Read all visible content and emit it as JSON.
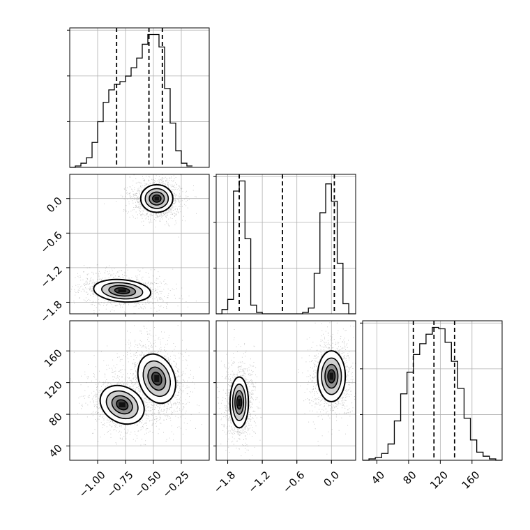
{
  "chart_data": {
    "type": "corner",
    "description_free": true,
    "grid": true,
    "parameters": [
      {
        "index": 0,
        "range": [
          -1.25,
          -0.0
        ],
        "ticks": [
          -1.0,
          -0.75,
          -0.5,
          -0.25
        ],
        "tick_labels": [
          "−1.00",
          "−0.75",
          "−0.50",
          "−0.25"
        ]
      },
      {
        "index": 1,
        "range": [
          -2.0,
          0.42
        ],
        "ticks": [
          -1.8,
          -1.2,
          -0.6,
          0.0
        ],
        "tick_labels": [
          "−1.8",
          "−1.2",
          "−0.6",
          "0.0"
        ]
      },
      {
        "index": 2,
        "range": [
          22,
          198
        ],
        "ticks": [
          40,
          80,
          120,
          160
        ],
        "tick_labels": [
          "40",
          "80",
          "120",
          "160"
        ]
      }
    ],
    "histograms": [
      {
        "param": 0,
        "bin_edges": [
          -1.25,
          -1.2,
          -1.15,
          -1.1,
          -1.05,
          -1.0,
          -0.95,
          -0.9,
          -0.85,
          -0.8,
          -0.75,
          -0.7,
          -0.65,
          -0.6,
          -0.55,
          -0.5,
          -0.45,
          -0.4,
          -0.35,
          -0.3,
          -0.25,
          -0.2,
          -0.15
        ],
        "counts": [
          0.0,
          0.01,
          0.03,
          0.07,
          0.18,
          0.33,
          0.47,
          0.56,
          0.6,
          0.62,
          0.66,
          0.72,
          0.79,
          0.89,
          0.96,
          0.96,
          0.87,
          0.57,
          0.32,
          0.12,
          0.03,
          0.01
        ],
        "quantiles": [
          -0.83,
          -0.54,
          -0.42
        ]
      },
      {
        "param": 1,
        "bin_edges": [
          -2.0,
          -1.9,
          -1.8,
          -1.7,
          -1.6,
          -1.5,
          -1.4,
          -1.3,
          -1.2,
          -1.1,
          -1.0,
          -0.9,
          -0.8,
          -0.7,
          -0.6,
          -0.5,
          -0.4,
          -0.3,
          -0.2,
          -0.1,
          0.0,
          0.1,
          0.2,
          0.3,
          0.42
        ],
        "counts": [
          0.0,
          0.03,
          0.1,
          0.85,
          0.92,
          0.52,
          0.06,
          0.01,
          0.0,
          0.0,
          0.0,
          0.0,
          0.0,
          0.0,
          0.0,
          0.01,
          0.04,
          0.28,
          0.7,
          0.9,
          0.78,
          0.35,
          0.07,
          0.0
        ],
        "quantiles": [
          -1.6,
          -0.85,
          0.05
        ]
      },
      {
        "param": 2,
        "bin_edges": [
          22,
          30,
          38,
          46,
          54,
          62,
          70,
          78,
          86,
          94,
          102,
          110,
          118,
          126,
          134,
          142,
          150,
          158,
          166,
          174,
          182,
          190,
          198
        ],
        "counts": [
          0.0,
          0.01,
          0.02,
          0.05,
          0.12,
          0.29,
          0.49,
          0.65,
          0.78,
          0.86,
          0.93,
          0.98,
          0.97,
          0.87,
          0.73,
          0.53,
          0.31,
          0.15,
          0.06,
          0.03,
          0.01,
          0.0
        ],
        "quantiles": [
          86,
          112,
          138
        ]
      }
    ],
    "joint_2d": [
      {
        "x_param": 0,
        "y_param": 1,
        "modes": [
          {
            "center": [
              -0.47,
              0.0
            ],
            "spread": [
              0.09,
              0.15
            ],
            "weight": 0.55,
            "rotation_deg": 0
          },
          {
            "center": [
              -0.78,
              -1.6
            ],
            "spread": [
              0.16,
              0.12
            ],
            "weight": 0.45,
            "rotation_deg": 5
          }
        ]
      },
      {
        "x_param": 0,
        "y_param": 2,
        "modes": [
          {
            "center": [
              -0.47,
              125
            ],
            "spread": [
              0.1,
              20
            ],
            "weight": 0.55,
            "rotation_deg": -20
          },
          {
            "center": [
              -0.78,
              92
            ],
            "spread": [
              0.13,
              14
            ],
            "weight": 0.45,
            "rotation_deg": 30
          }
        ]
      },
      {
        "x_param": 1,
        "y_param": 2,
        "modes": [
          {
            "center": [
              -1.6,
              95
            ],
            "spread": [
              0.1,
              20
            ],
            "weight": 0.5,
            "rotation_deg": 0
          },
          {
            "center": [
              0.0,
              128
            ],
            "spread": [
              0.15,
              20
            ],
            "weight": 0.5,
            "rotation_deg": 0
          }
        ]
      }
    ]
  }
}
